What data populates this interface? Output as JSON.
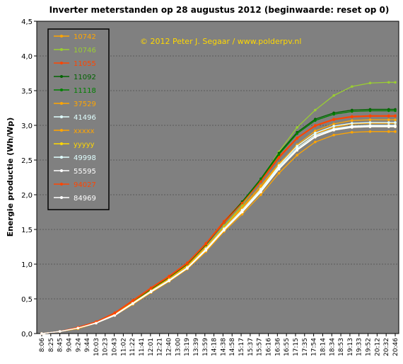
{
  "chart_data": {
    "type": "line",
    "title": "Inverter meterstanden  op 28 augustus  2012 (beginwaarde: reset op 0)",
    "annotation": "© 2012 Peter J. Segaar / www.polderpv.nl",
    "xlabel": "",
    "ylabel": "Energie productie (Wh/Wp)",
    "ylim": [
      0,
      4.5
    ],
    "y_ticks": [
      "0,0",
      "0,5",
      "1,0",
      "1,5",
      "2,0",
      "2,5",
      "3,0",
      "3,5",
      "4,0",
      "4,5"
    ],
    "x_ticks": [
      "8:06",
      "8:25",
      "8:45",
      "9:04",
      "9:24",
      "9:44",
      "10:03",
      "10:23",
      "10:43",
      "11:02",
      "11:22",
      "11:41",
      "12:01",
      "12:21",
      "12:40",
      "13:00",
      "13:19",
      "13:39",
      "13:59",
      "14:18",
      "14:38",
      "14:58",
      "15:17",
      "15:37",
      "15:57",
      "16:16",
      "16:36",
      "16:55",
      "17:15",
      "17:35",
      "17:54",
      "18:14",
      "18:34",
      "18:53",
      "19:13",
      "19:33",
      "19:52",
      "20:12",
      "20:32",
      "20:46"
    ],
    "grid": true,
    "legend_position": "top-left",
    "background_color": "#808080",
    "x": [
      "8:06",
      "8:45",
      "9:24",
      "10:03",
      "10:43",
      "11:22",
      "12:01",
      "12:40",
      "13:19",
      "13:59",
      "14:38",
      "15:17",
      "15:57",
      "16:36",
      "17:15",
      "17:54",
      "18:34",
      "19:13",
      "19:52",
      "20:32",
      "20:46"
    ],
    "series": [
      {
        "name": "10742",
        "color": "#ffa500",
        "values": [
          0.0,
          0.03,
          0.08,
          0.16,
          0.28,
          0.46,
          0.63,
          0.8,
          0.98,
          1.25,
          1.55,
          1.82,
          2.13,
          2.45,
          2.7,
          2.88,
          2.97,
          3.02,
          3.03,
          3.03,
          3.03
        ]
      },
      {
        "name": "10746",
        "color": "#9acd32",
        "values": [
          0.0,
          0.03,
          0.08,
          0.16,
          0.28,
          0.45,
          0.62,
          0.79,
          0.97,
          1.24,
          1.55,
          1.85,
          2.22,
          2.62,
          2.97,
          3.22,
          3.43,
          3.56,
          3.61,
          3.62,
          3.62
        ]
      },
      {
        "name": "11055",
        "color": "#ff4500",
        "values": [
          0.0,
          0.03,
          0.09,
          0.17,
          0.3,
          0.48,
          0.66,
          0.83,
          1.02,
          1.3,
          1.62,
          1.9,
          2.2,
          2.55,
          2.82,
          3.0,
          3.09,
          3.13,
          3.14,
          3.14,
          3.14
        ]
      },
      {
        "name": "11092",
        "color": "#006400",
        "values": [
          0.0,
          0.03,
          0.08,
          0.16,
          0.28,
          0.46,
          0.64,
          0.81,
          1.0,
          1.28,
          1.6,
          1.9,
          2.23,
          2.6,
          2.9,
          3.09,
          3.18,
          3.22,
          3.23,
          3.23,
          3.23
        ]
      },
      {
        "name": "11118",
        "color": "#008000",
        "values": [
          0.0,
          0.03,
          0.08,
          0.16,
          0.28,
          0.46,
          0.64,
          0.81,
          1.0,
          1.28,
          1.6,
          1.89,
          2.22,
          2.58,
          2.88,
          3.07,
          3.16,
          3.2,
          3.21,
          3.21,
          3.21
        ]
      },
      {
        "name": "37529",
        "color": "#ffa500",
        "values": [
          0.0,
          0.03,
          0.08,
          0.16,
          0.28,
          0.45,
          0.62,
          0.79,
          0.97,
          1.24,
          1.53,
          1.8,
          2.1,
          2.44,
          2.72,
          2.92,
          3.02,
          3.07,
          3.08,
          3.08,
          3.08
        ]
      },
      {
        "name": "41496",
        "color": "#e0ffff",
        "values": [
          0.0,
          0.03,
          0.08,
          0.16,
          0.27,
          0.44,
          0.61,
          0.77,
          0.95,
          1.21,
          1.5,
          1.77,
          2.07,
          2.4,
          2.67,
          2.86,
          2.95,
          2.99,
          3.0,
          3.0,
          3.0
        ]
      },
      {
        "name": "xxxxx",
        "color": "#ffa500",
        "values": [
          0.0,
          0.03,
          0.07,
          0.15,
          0.26,
          0.42,
          0.59,
          0.75,
          0.93,
          1.18,
          1.47,
          1.72,
          2.0,
          2.31,
          2.57,
          2.76,
          2.86,
          2.9,
          2.91,
          2.91,
          2.91
        ]
      },
      {
        "name": "yyyyy",
        "color": "#ffd700",
        "values": [
          0.0,
          0.03,
          0.08,
          0.15,
          0.27,
          0.43,
          0.6,
          0.76,
          0.94,
          1.2,
          1.49,
          1.75,
          2.04,
          2.37,
          2.64,
          2.83,
          2.93,
          2.97,
          2.98,
          2.98,
          2.98
        ]
      },
      {
        "name": "49998",
        "color": "#e0ffff",
        "values": [
          0.0,
          0.03,
          0.08,
          0.16,
          0.27,
          0.44,
          0.61,
          0.77,
          0.95,
          1.22,
          1.51,
          1.78,
          2.08,
          2.42,
          2.7,
          2.89,
          2.99,
          3.03,
          3.04,
          3.04,
          3.04
        ]
      },
      {
        "name": "55595",
        "color": "#ffffff",
        "values": [
          0.0,
          0.03,
          0.08,
          0.15,
          0.27,
          0.43,
          0.6,
          0.76,
          0.94,
          1.2,
          1.49,
          1.76,
          2.05,
          2.38,
          2.65,
          2.84,
          2.94,
          2.98,
          2.99,
          2.99,
          2.99
        ]
      },
      {
        "name": "94027",
        "color": "#ff4500",
        "values": [
          0.0,
          0.03,
          0.09,
          0.17,
          0.29,
          0.47,
          0.65,
          0.82,
          1.01,
          1.29,
          1.6,
          1.88,
          2.19,
          2.53,
          2.81,
          2.99,
          3.08,
          3.12,
          3.13,
          3.13,
          3.13
        ]
      },
      {
        "name": "84969",
        "color": "#ffffff",
        "values": [
          0.0,
          0.03,
          0.08,
          0.15,
          0.26,
          0.43,
          0.6,
          0.76,
          0.94,
          1.2,
          1.49,
          1.75,
          2.04,
          2.37,
          2.64,
          2.83,
          2.93,
          2.97,
          2.98,
          2.98,
          2.98
        ]
      }
    ]
  }
}
